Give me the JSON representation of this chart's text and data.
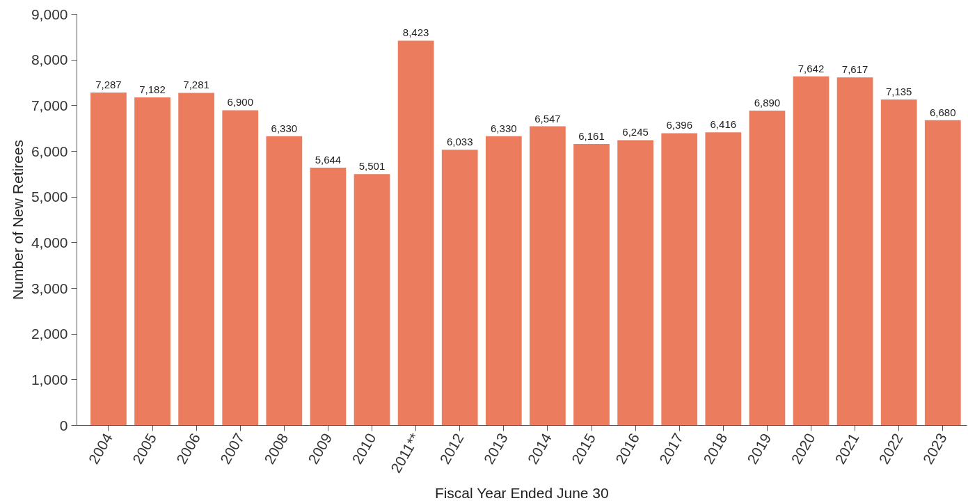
{
  "chart_data": {
    "type": "bar",
    "xlabel": "Fiscal Year Ended June 30",
    "ylabel": "Number of New Retirees",
    "categories": [
      "2004",
      "2005",
      "2006",
      "2007",
      "2008",
      "2009",
      "2010",
      "2011**",
      "2012",
      "2013",
      "2014",
      "2015",
      "2016",
      "2017",
      "2018",
      "2019",
      "2020",
      "2021",
      "2022",
      "2023"
    ],
    "values": [
      7287,
      7182,
      7281,
      6900,
      6330,
      5644,
      5501,
      8423,
      6033,
      6330,
      6547,
      6161,
      6245,
      6396,
      6416,
      6890,
      7642,
      7617,
      7135,
      6680
    ],
    "value_labels": [
      "7,287",
      "7,182",
      "7,281",
      "6,900",
      "6,330",
      "5,644",
      "5,501",
      "8,423",
      "6,033",
      "6,330",
      "6,547",
      "6,161",
      "6,245",
      "6,396",
      "6,416",
      "6,890",
      "7,642",
      "7,617",
      "7,135",
      "6,680"
    ],
    "color": "#ec7c5e",
    "grid": false,
    "ylim": [
      0,
      9000
    ],
    "yticks": [
      {
        "value": 0,
        "label": "0"
      },
      {
        "value": 1000,
        "label": "1,000"
      },
      {
        "value": 2000,
        "label": "2,000"
      },
      {
        "value": 3000,
        "label": "3,000"
      },
      {
        "value": 4000,
        "label": "4,000"
      },
      {
        "value": 5000,
        "label": "5,000"
      },
      {
        "value": 6000,
        "label": "6,000"
      },
      {
        "value": 7000,
        "label": "7,000"
      },
      {
        "value": 8000,
        "label": "8,000"
      },
      {
        "value": 9000,
        "label": "9,000"
      }
    ]
  }
}
